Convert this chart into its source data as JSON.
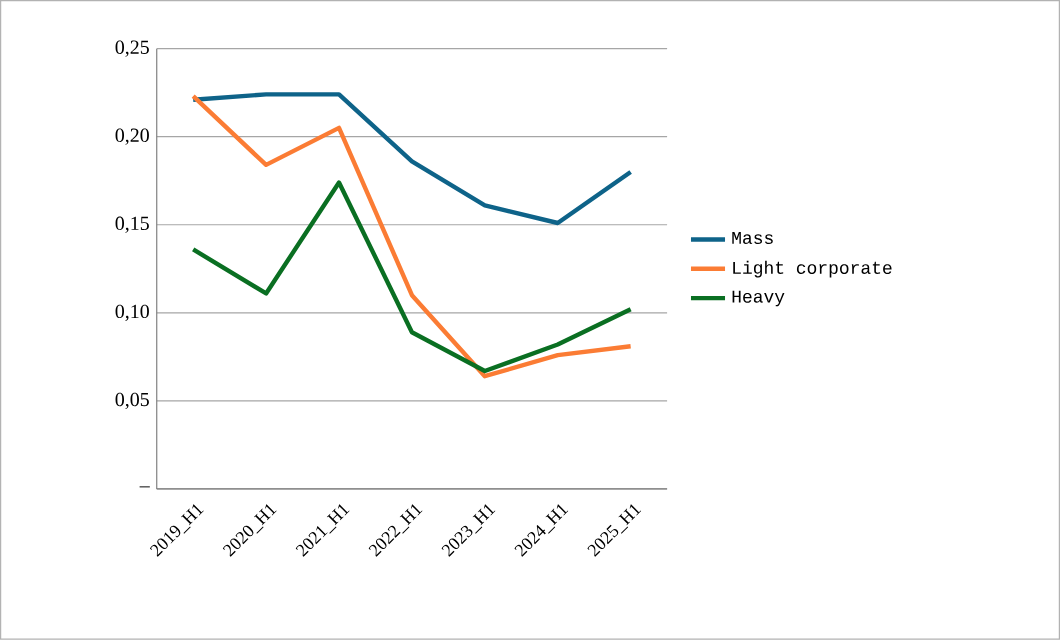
{
  "chart_data": {
    "type": "line",
    "categories": [
      "2019_H1",
      "2020_H1",
      "2021_H1",
      "2022_H1",
      "2023_H1",
      "2024_H1",
      "2025_H1"
    ],
    "series": [
      {
        "name": "Mass",
        "color": "#0e6389",
        "values": [
          0.221,
          0.224,
          0.224,
          0.186,
          0.161,
          0.151,
          0.18
        ]
      },
      {
        "name": "Light corporate",
        "color": "#fb7c34",
        "values": [
          0.223,
          0.184,
          0.205,
          0.11,
          0.064,
          0.076,
          0.081
        ]
      },
      {
        "name": "Heavy",
        "color": "#0a6f22",
        "values": [
          0.136,
          0.111,
          0.174,
          0.089,
          0.067,
          0.082,
          0.102
        ]
      }
    ],
    "ylim": [
      0,
      0.25
    ],
    "yticks": [
      {
        "value": 0,
        "label": "–"
      },
      {
        "value": 0.05,
        "label": "0,05"
      },
      {
        "value": 0.1,
        "label": "0,10"
      },
      {
        "value": 0.15,
        "label": "0,15"
      },
      {
        "value": 0.2,
        "label": "0,20"
      },
      {
        "value": 0.25,
        "label": "0,25"
      }
    ],
    "grid": "y",
    "legend": "right",
    "marker": "none",
    "line_style": "solid"
  }
}
